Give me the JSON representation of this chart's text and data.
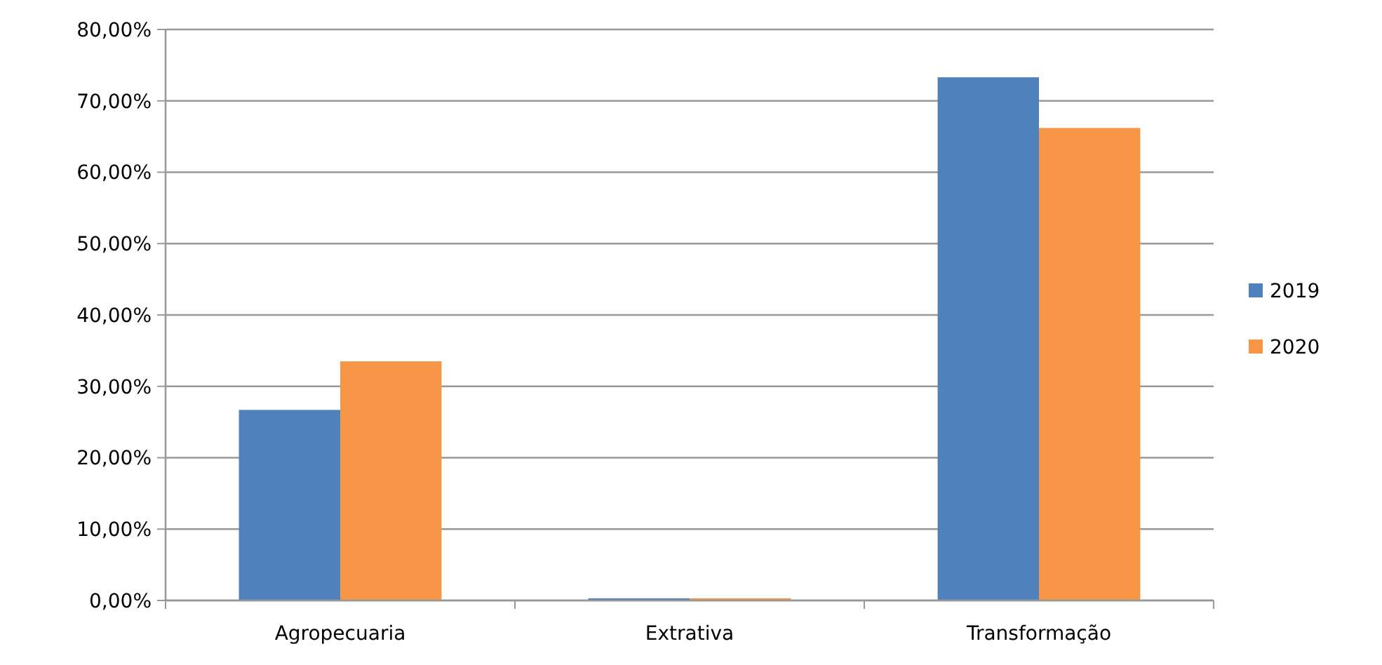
{
  "chart_data": {
    "type": "bar",
    "categories": [
      "Agropecuaria",
      "Extrativa",
      "Transformação"
    ],
    "series": [
      {
        "name": "2019",
        "color": "#4f81bd",
        "values": [
          26.7,
          0.3,
          73.3
        ]
      },
      {
        "name": "2020",
        "color": "#f79646",
        "values": [
          33.5,
          0.3,
          66.2
        ]
      }
    ],
    "ylim": [
      0,
      80
    ],
    "yticks": [
      {
        "value": 0,
        "label": "0,00%"
      },
      {
        "value": 10,
        "label": "10,00%"
      },
      {
        "value": 20,
        "label": "20,00%"
      },
      {
        "value": 30,
        "label": "30,00%"
      },
      {
        "value": 40,
        "label": "40,00%"
      },
      {
        "value": 50,
        "label": "50,00%"
      },
      {
        "value": 60,
        "label": "60,00%"
      },
      {
        "value": 70,
        "label": "70,00%"
      },
      {
        "value": 80,
        "label": "80,00%"
      }
    ],
    "grid": "y",
    "legend": "right"
  }
}
